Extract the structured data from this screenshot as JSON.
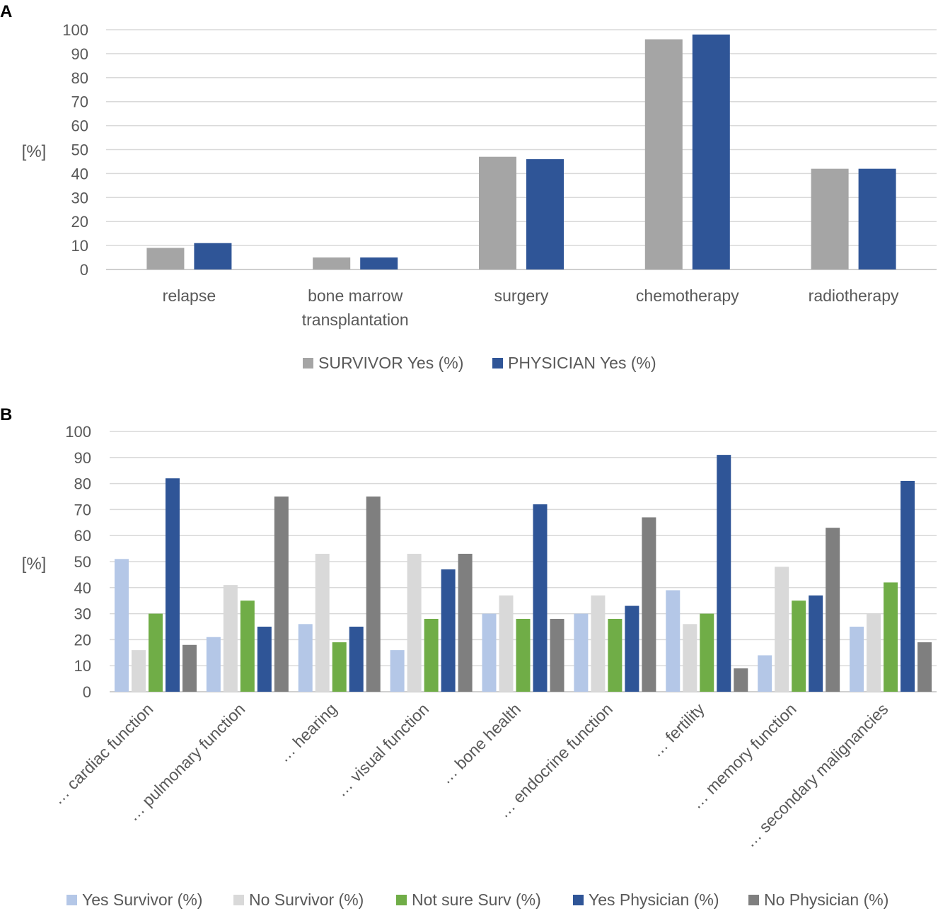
{
  "colors": {
    "survivor_gray": "#a5a5a5",
    "physician_blue": "#2f5597",
    "yes_survivor": "#b4c7e7",
    "no_survivor": "#d9d9d9",
    "not_sure": "#70ad47",
    "yes_physician": "#2f5597",
    "no_physician": "#7f7f7f",
    "text": "#595959",
    "grid": "#d9d9d9"
  },
  "chart_data": [
    {
      "panel": "A",
      "type": "bar",
      "ylabel": "[%]",
      "ylim": [
        0,
        100
      ],
      "yticks": [
        "0",
        "10",
        "20",
        "30",
        "40",
        "50",
        "60",
        "70",
        "80",
        "90",
        "100"
      ],
      "grid": true,
      "legend_position": "bottom",
      "categories": [
        [
          "relapse"
        ],
        [
          "bone marrow",
          "transplantation"
        ],
        [
          "surgery"
        ],
        [
          "chemotherapy"
        ],
        [
          "radiotherapy"
        ]
      ],
      "series": [
        {
          "name": "SURVIVOR Yes (%)",
          "color": "#a5a5a5",
          "values": [
            9,
            5,
            47,
            96,
            42
          ]
        },
        {
          "name": "PHYSICIAN Yes (%)",
          "color": "#2f5597",
          "values": [
            11,
            5,
            46,
            98,
            42
          ]
        }
      ]
    },
    {
      "panel": "B",
      "type": "bar",
      "ylabel": "[%]",
      "ylim": [
        0,
        100
      ],
      "yticks": [
        "0",
        "10",
        "20",
        "30",
        "40",
        "50",
        "60",
        "70",
        "80",
        "90",
        "100"
      ],
      "grid": true,
      "legend_position": "bottom",
      "categories": [
        "… cardiac function",
        "… pulmonary function",
        "… hearing",
        "… visual function",
        "… bone health",
        "… endocrine function",
        "… fertility",
        "… memory function",
        "… secondary malignancies"
      ],
      "series": [
        {
          "name": "Yes Survivor (%)",
          "color": "#b4c7e7",
          "values": [
            51,
            21,
            26,
            16,
            30,
            30,
            39,
            14,
            25
          ]
        },
        {
          "name": "No Survivor (%)",
          "color": "#d9d9d9",
          "values": [
            16,
            41,
            53,
            53,
            37,
            37,
            26,
            48,
            30
          ]
        },
        {
          "name": "Not sure Surv (%)",
          "color": "#70ad47",
          "values": [
            30,
            35,
            19,
            28,
            28,
            28,
            30,
            35,
            42
          ]
        },
        {
          "name": "Yes Physician (%)",
          "color": "#2f5597",
          "values": [
            82,
            25,
            25,
            47,
            72,
            33,
            91,
            37,
            81
          ]
        },
        {
          "name": "No Physician (%)",
          "color": "#7f7f7f",
          "values": [
            18,
            75,
            75,
            53,
            28,
            67,
            9,
            63,
            19
          ]
        }
      ]
    }
  ]
}
